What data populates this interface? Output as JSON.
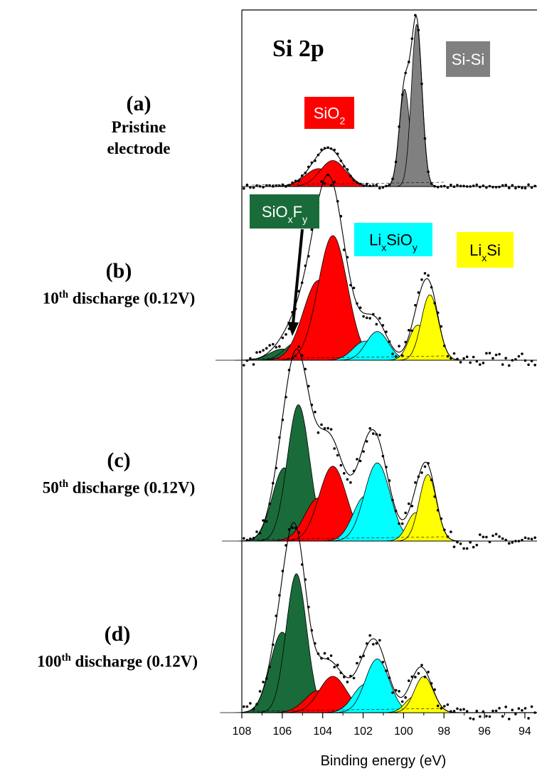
{
  "chart_data": {
    "type": "line",
    "title": "Si 2p",
    "xlabel": "Binding energy (eV)",
    "ylabel": "",
    "xlim": [
      108,
      93.4
    ],
    "x_reversed": true,
    "x_ticks": [
      "108",
      "106",
      "104",
      "102",
      "100",
      "98",
      "96",
      "94"
    ],
    "x_tick_values": [
      108,
      106,
      104,
      102,
      100,
      98,
      96,
      94
    ],
    "colors": {
      "Si-Si": "#808080",
      "SiO2": "#ff0000",
      "LixSiOy": "#00ffff",
      "LixSi": "#ffff00",
      "SiOxFy": "#1a6b3a"
    },
    "panels": [
      {
        "letter": "(a)",
        "desc_lines": [
          "Pristine",
          "electrode"
        ],
        "ymax": 1.0,
        "components": [
          {
            "species": "SiO2",
            "center": 104.2,
            "fwhm": 1.6,
            "height": 0.11
          },
          {
            "species": "SiO2",
            "center": 103.5,
            "fwhm": 1.5,
            "height": 0.16
          },
          {
            "species": "Si-Si",
            "center": 99.95,
            "fwhm": 0.62,
            "height": 0.6
          },
          {
            "species": "Si-Si",
            "center": 99.35,
            "fwhm": 0.62,
            "height": 1.0
          }
        ]
      },
      {
        "letter": "(b)",
        "desc_main": "10",
        "desc_sup": "th",
        "desc_rest": " discharge (0.12V)",
        "ymax": 1.0,
        "components": [
          {
            "species": "SiOxFy",
            "center": 106.0,
            "fwhm": 1.5,
            "height": 0.07
          },
          {
            "species": "SiOxFy",
            "center": 105.3,
            "fwhm": 1.4,
            "height": 0.11
          },
          {
            "species": "SiO2",
            "center": 104.2,
            "fwhm": 1.8,
            "height": 0.5
          },
          {
            "species": "SiO2",
            "center": 103.5,
            "fwhm": 1.7,
            "height": 0.78
          },
          {
            "species": "LixSiOy",
            "center": 101.9,
            "fwhm": 1.4,
            "height": 0.12
          },
          {
            "species": "LixSiOy",
            "center": 101.3,
            "fwhm": 1.3,
            "height": 0.18
          },
          {
            "species": "LixSi",
            "center": 99.3,
            "fwhm": 1.0,
            "height": 0.22
          },
          {
            "species": "LixSi",
            "center": 98.7,
            "fwhm": 1.0,
            "height": 0.41
          }
        ]
      },
      {
        "letter": "(c)",
        "desc_main": "50",
        "desc_sup": "th",
        "desc_rest": " discharge (0.12V)",
        "ymax": 1.0,
        "components": [
          {
            "species": "SiOxFy",
            "center": 105.9,
            "fwhm": 1.4,
            "height": 0.44
          },
          {
            "species": "SiOxFy",
            "center": 105.2,
            "fwhm": 1.3,
            "height": 0.82
          },
          {
            "species": "SiO2",
            "center": 104.2,
            "fwhm": 1.6,
            "height": 0.26
          },
          {
            "species": "SiO2",
            "center": 103.5,
            "fwhm": 1.6,
            "height": 0.45
          },
          {
            "species": "LixSiOy",
            "center": 101.9,
            "fwhm": 1.4,
            "height": 0.27
          },
          {
            "species": "LixSiOy",
            "center": 101.3,
            "fwhm": 1.5,
            "height": 0.47
          },
          {
            "species": "LixSi",
            "center": 99.4,
            "fwhm": 1.0,
            "height": 0.17
          },
          {
            "species": "LixSi",
            "center": 98.8,
            "fwhm": 1.0,
            "height": 0.4
          }
        ]
      },
      {
        "letter": "(d)",
        "desc_main": "100",
        "desc_sup": "th",
        "desc_rest": " discharge (0.12V)",
        "ymax": 1.0,
        "components": [
          {
            "species": "SiOxFy",
            "center": 106.0,
            "fwhm": 1.4,
            "height": 0.51
          },
          {
            "species": "SiOxFy",
            "center": 105.3,
            "fwhm": 1.2,
            "height": 0.88
          },
          {
            "species": "SiO2",
            "center": 104.2,
            "fwhm": 1.6,
            "height": 0.14
          },
          {
            "species": "SiO2",
            "center": 103.5,
            "fwhm": 1.6,
            "height": 0.23
          },
          {
            "species": "LixSiOy",
            "center": 101.9,
            "fwhm": 1.4,
            "height": 0.18
          },
          {
            "species": "LixSiOy",
            "center": 101.3,
            "fwhm": 1.4,
            "height": 0.34
          },
          {
            "species": "LixSi",
            "center": 99.5,
            "fwhm": 1.0,
            "height": 0.1
          },
          {
            "species": "LixSi",
            "center": 99.0,
            "fwhm": 1.1,
            "height": 0.23
          }
        ]
      }
    ],
    "annotations": [
      {
        "text": "Si 2p",
        "panel": 0
      },
      {
        "species": "Si-Si",
        "base": "Si-Si",
        "sub1": "",
        "mid": "",
        "sub2": "",
        "panel": 0
      },
      {
        "species": "SiO2",
        "base": "SiO",
        "sub1": "2",
        "mid": "",
        "sub2": "",
        "panel": 0
      },
      {
        "species": "SiOxFy",
        "base": "SiO",
        "sub1": "x",
        "mid": "F",
        "sub2": "y",
        "panel": 1
      },
      {
        "species": "LixSiOy",
        "base": "Li",
        "sub1": "x",
        "mid": "SiO",
        "sub2": "y",
        "panel": 1
      },
      {
        "species": "LixSi",
        "base": "Li",
        "sub1": "x",
        "mid": "Si",
        "sub2": "",
        "panel": 1
      }
    ]
  }
}
